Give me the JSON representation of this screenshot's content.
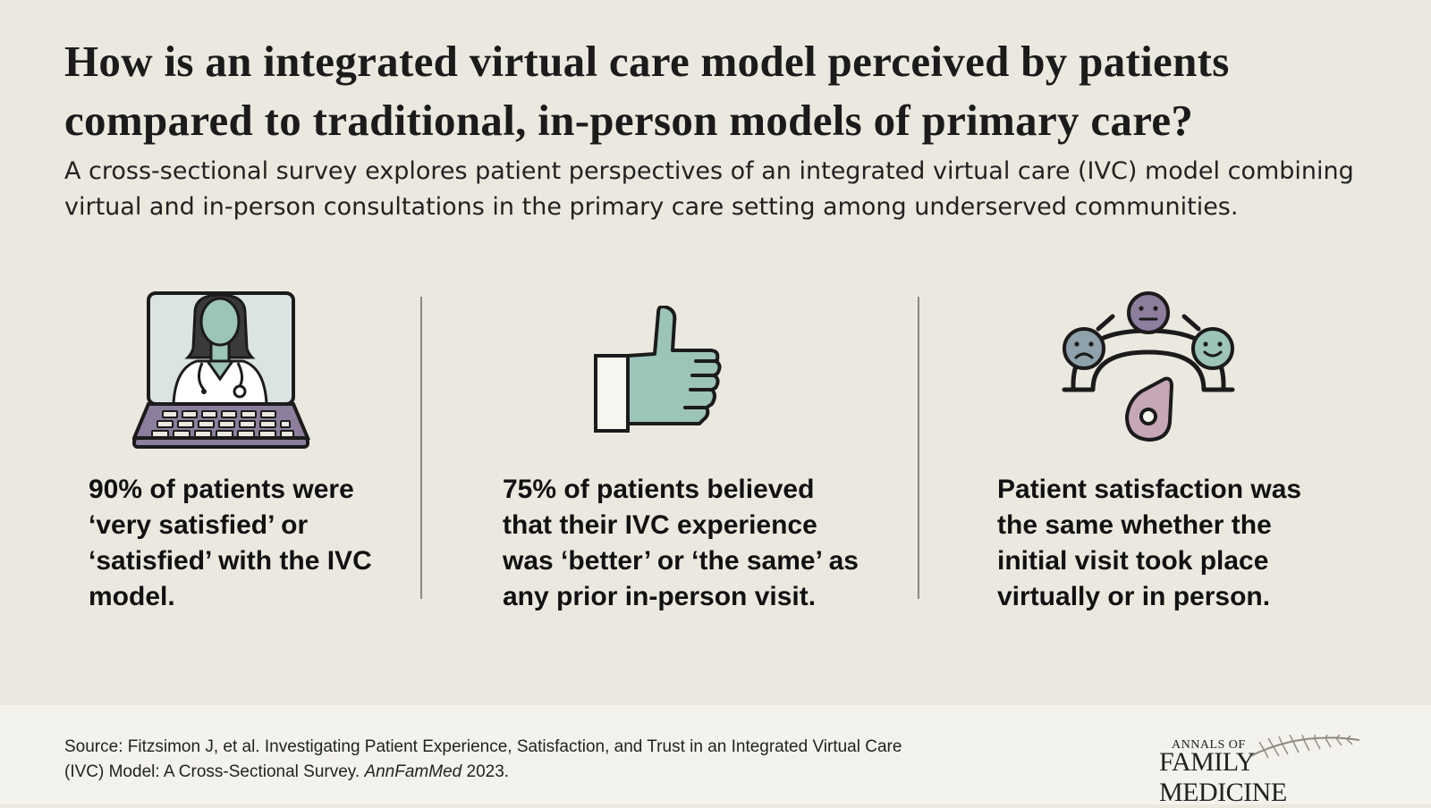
{
  "header": {
    "title": "How is an integrated virtual care model perceived by patients compared to traditional, in-person models of primary care?",
    "subtitle": "A cross-sectional survey explores patient perspectives of an integrated virtual care (IVC) model combining virtual and in-person consultations in the primary care setting among underserved communities."
  },
  "findings": [
    {
      "icon": "laptop-doctor-icon",
      "text": "90% of patients were ‘very satisfied’ or ‘satisfied’ with the IVC model."
    },
    {
      "icon": "thumbs-up-icon",
      "text": "75% of patients believed that their IVC experience was ‘better’ or ‘the same’ as any prior in-person visit."
    },
    {
      "icon": "satisfaction-meter-icon",
      "text": "Patient satisfaction was the same whether the initial visit took place virtually or in person."
    }
  ],
  "footer": {
    "source_prefix": "Source:  Fitzsimon J, et al. Investigating Patient Experience, Satisfaction, and Trust in an Integrated Virtual Care (IVC) Model: A Cross-Sectional Survey. ",
    "source_journal": "AnnFamMed",
    "source_year": " 2023.",
    "brand_small": "ANNALS OF",
    "brand_big": "FAMILY MEDICINE"
  },
  "colors": {
    "background": "#ebe8df",
    "footer_background": "#f4f2ec",
    "teal": "#9cc4b9",
    "purple": "#8c7e9c",
    "mauve": "#c5a7b6",
    "screen": "#dbe4e2"
  }
}
